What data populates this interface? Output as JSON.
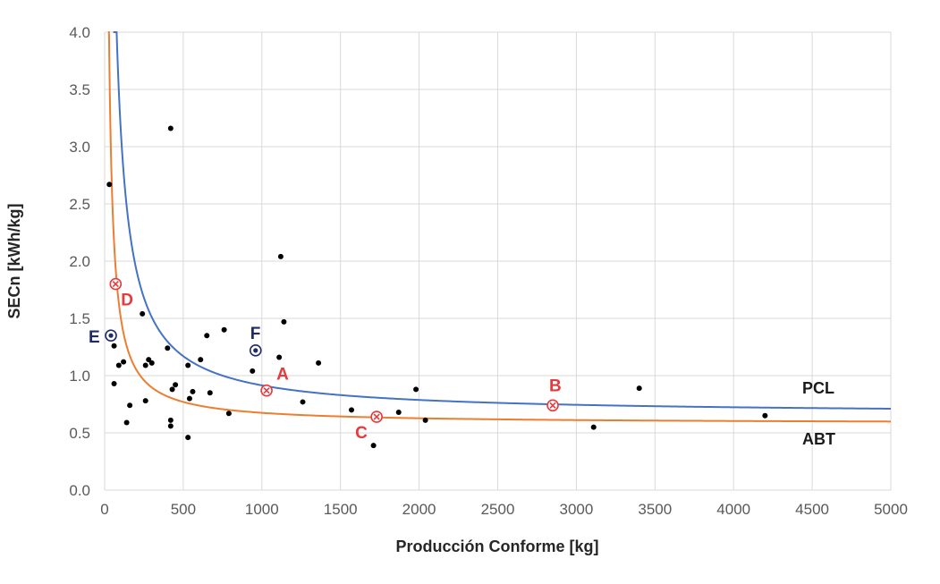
{
  "chart_data": {
    "type": "scatter",
    "title": "",
    "xlabel": "Producción Conforme [kg]",
    "ylabel": "SECn [kWh/kg]",
    "xlim": [
      0,
      5000
    ],
    "ylim": [
      0,
      4.0
    ],
    "xticks": [
      "0",
      "500",
      "1000",
      "1500",
      "2000",
      "2500",
      "3000",
      "3500",
      "4000",
      "4500",
      "5000"
    ],
    "yticks": [
      "0.0",
      "0.5",
      "1.0",
      "1.5",
      "2.0",
      "2.5",
      "3.0",
      "3.5",
      "4.0"
    ],
    "grid": true,
    "colors": {
      "pcl": "#4472c4",
      "abt": "#ed7d31",
      "points": "#000000",
      "highlight_red": "#e8393b",
      "highlight_navy": "#1f2a6b",
      "grid": "#d9d9d9"
    },
    "curves": [
      {
        "name": "PCL",
        "a": 0.66,
        "b": 255,
        "x_start": 55
      },
      {
        "name": "ABT",
        "a": 0.58,
        "b": 95,
        "x_start": 22
      }
    ],
    "points": [
      [
        30,
        2.67
      ],
      [
        60,
        1.26
      ],
      [
        60,
        0.93
      ],
      [
        90,
        1.09
      ],
      [
        120,
        1.12
      ],
      [
        140,
        0.59
      ],
      [
        160,
        0.74
      ],
      [
        240,
        1.54
      ],
      [
        260,
        0.78
      ],
      [
        260,
        1.09
      ],
      [
        280,
        1.14
      ],
      [
        300,
        1.11
      ],
      [
        400,
        1.24
      ],
      [
        420,
        3.16
      ],
      [
        420,
        0.61
      ],
      [
        420,
        0.56
      ],
      [
        430,
        0.88
      ],
      [
        450,
        0.92
      ],
      [
        530,
        1.09
      ],
      [
        530,
        0.46
      ],
      [
        540,
        0.8
      ],
      [
        560,
        0.86
      ],
      [
        610,
        1.14
      ],
      [
        650,
        1.35
      ],
      [
        670,
        0.85
      ],
      [
        760,
        1.4
      ],
      [
        790,
        0.67
      ],
      [
        940,
        1.04
      ],
      [
        1110,
        1.16
      ],
      [
        1120,
        2.04
      ],
      [
        1140,
        1.47
      ],
      [
        1260,
        0.77
      ],
      [
        1360,
        1.11
      ],
      [
        1570,
        0.7
      ],
      [
        1710,
        0.39
      ],
      [
        1870,
        0.68
      ],
      [
        1980,
        0.88
      ],
      [
        2040,
        0.61
      ],
      [
        3110,
        0.55
      ],
      [
        3400,
        0.89
      ],
      [
        4200,
        0.65
      ]
    ],
    "highlighted": [
      {
        "label": "A",
        "x": 1030,
        "y": 0.87,
        "marker": "cross",
        "color": "red"
      },
      {
        "label": "B",
        "x": 2850,
        "y": 0.74,
        "marker": "cross",
        "color": "red"
      },
      {
        "label": "C",
        "x": 1730,
        "y": 0.64,
        "marker": "cross",
        "color": "red"
      },
      {
        "label": "D",
        "x": 70,
        "y": 1.8,
        "marker": "cross",
        "color": "red"
      },
      {
        "label": "E",
        "x": 40,
        "y": 1.35,
        "marker": "dot",
        "color": "navy"
      },
      {
        "label": "F",
        "x": 960,
        "y": 1.22,
        "marker": "dot",
        "color": "navy"
      }
    ],
    "curve_labels": [
      "PCL",
      "ABT"
    ]
  }
}
